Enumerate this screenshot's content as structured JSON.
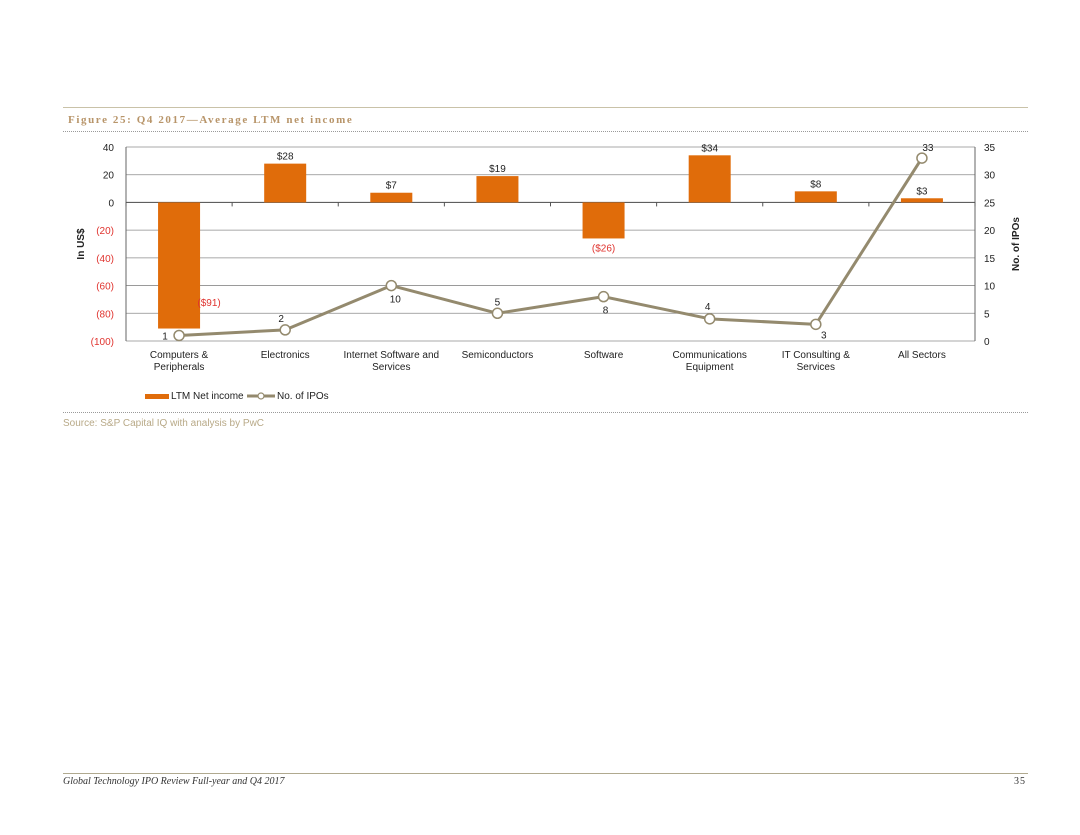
{
  "figure_title": "Figure 25: Q4 2017—Average LTM net income",
  "source": "Source: S&P Capital IQ with analysis by PwC",
  "footer": {
    "left": "Global Technology IPO Review Full-year and Q4 2017",
    "page": "35"
  },
  "colors": {
    "bar": "#e06c0a",
    "line": "#948a6e",
    "negative_label": "#e0342f",
    "rule": "#c9c2a8",
    "title": "#b8956a"
  },
  "chart_data": {
    "type": "bar",
    "categories": [
      [
        "Computers &",
        "Peripherals"
      ],
      [
        "Electronics"
      ],
      [
        "Internet Software and",
        "Services"
      ],
      [
        "Semiconductors"
      ],
      [
        "Software"
      ],
      [
        "Communications",
        "Equipment"
      ],
      [
        "IT Consulting &",
        "Services"
      ],
      [
        "All Sectors"
      ]
    ],
    "series": [
      {
        "name": "LTM Net income",
        "type": "bar",
        "axis": "left",
        "values": [
          -91,
          28,
          7,
          19,
          -26,
          34,
          8,
          3
        ],
        "labels": [
          "($91)",
          "$28",
          "$7",
          "$19",
          "($26)",
          "$34",
          "$8",
          "$3"
        ]
      },
      {
        "name": "No. of IPOs",
        "type": "line",
        "axis": "right",
        "values": [
          1,
          2,
          10,
          5,
          8,
          4,
          3,
          33
        ],
        "labels": [
          "1",
          "2",
          "10",
          "5",
          "8",
          "4",
          "3",
          "33"
        ]
      }
    ],
    "ylabel": "In US$",
    "y2label": "No. of IPOs",
    "ylim": [
      -100,
      40
    ],
    "y2lim": [
      0,
      35
    ],
    "yticks": [
      40,
      20,
      0,
      -20,
      -40,
      -60,
      -80,
      -100
    ],
    "ytick_labels": [
      "40",
      "20",
      "0",
      "(20)",
      "(40)",
      "(60)",
      "(80)",
      "(100)"
    ],
    "y2ticks": [
      35,
      30,
      25,
      20,
      15,
      10,
      5,
      0
    ],
    "y2tick_labels": [
      "35",
      "30",
      "25",
      "20",
      "15",
      "10",
      "5",
      "0"
    ],
    "grid": true,
    "legend_position": "bottom-left"
  }
}
